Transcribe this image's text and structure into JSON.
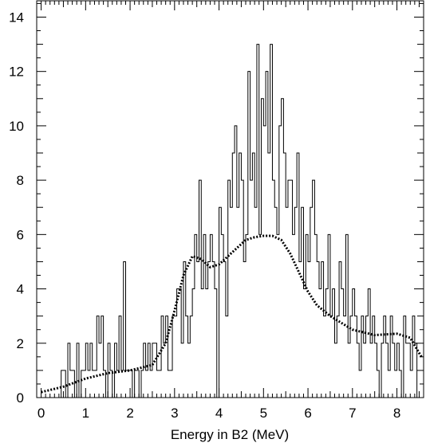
{
  "chart_data": {
    "type": "histogram",
    "xlabel": "Energy in B2 (MeV)",
    "ylabel": "",
    "xlim": [
      -0.1,
      8.6
    ],
    "ylim": [
      0,
      14.6
    ],
    "x_ticks": [
      0,
      1,
      2,
      3,
      4,
      5,
      6,
      7,
      8
    ],
    "y_ticks": [
      0,
      2,
      4,
      6,
      8,
      10,
      12,
      14
    ],
    "bin_width": 0.05,
    "bin_start": 0,
    "histogram_counts": [
      0,
      0,
      0,
      0,
      0,
      0,
      0,
      0,
      0,
      1,
      1,
      0,
      2,
      1,
      1,
      0,
      2,
      0,
      1,
      1,
      2,
      1,
      2,
      1,
      1,
      3,
      2,
      3,
      1,
      0,
      2,
      1,
      0,
      2,
      1,
      3,
      1,
      5,
      1,
      1,
      1,
      0,
      1,
      1,
      0,
      1,
      2,
      1,
      2,
      1,
      2,
      2,
      1,
      1,
      3,
      2,
      3,
      1,
      1,
      3,
      3,
      4,
      4,
      2,
      5,
      3,
      2,
      3,
      4,
      6,
      5,
      8,
      4,
      6,
      4,
      5,
      6,
      5,
      4,
      0,
      7,
      6,
      5,
      3,
      8,
      7,
      9,
      10,
      7,
      9,
      8,
      5,
      6,
      12,
      8,
      9,
      7,
      13,
      6,
      11,
      10,
      12,
      9,
      13,
      8,
      7,
      6,
      10,
      11,
      9,
      7,
      8,
      8,
      6,
      7,
      9,
      5,
      7,
      4,
      6,
      5,
      7,
      8,
      6,
      5,
      4,
      5,
      3,
      4,
      6,
      3,
      4,
      2,
      3,
      5,
      4,
      3,
      6,
      2,
      3,
      4,
      3,
      2,
      1,
      3,
      2,
      3,
      4,
      2,
      3,
      2,
      1,
      0,
      2,
      3,
      2,
      1,
      3,
      2,
      1,
      2,
      1,
      0,
      3,
      2,
      2,
      1,
      3,
      2
    ],
    "series": [
      {
        "style": "dotted",
        "x": [
          0,
          0.5,
          1,
          1.5,
          2,
          2.5,
          2.8,
          3.0,
          3.2,
          3.4,
          3.6,
          3.8,
          4.0,
          4.2,
          4.4,
          4.6,
          4.8,
          5.0,
          5.2,
          5.4,
          5.6,
          5.8,
          6.0,
          6.2,
          6.5,
          7.0,
          7.5,
          8.0,
          8.3,
          8.55
        ],
        "y": [
          0.2,
          0.4,
          0.7,
          0.9,
          1.0,
          1.2,
          2.0,
          3.2,
          4.5,
          5.2,
          5.1,
          4.8,
          4.9,
          5.2,
          5.5,
          5.8,
          5.9,
          5.95,
          5.95,
          5.8,
          5.3,
          4.6,
          3.9,
          3.4,
          3.0,
          2.5,
          2.3,
          2.35,
          2.2,
          1.5
        ]
      }
    ]
  }
}
